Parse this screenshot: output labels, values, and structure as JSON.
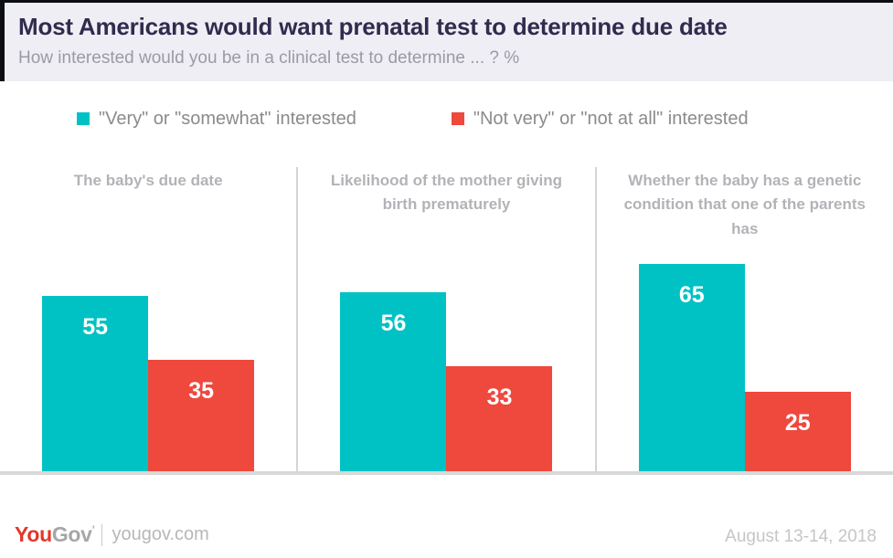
{
  "header": {
    "title": "Most Americans would want prenatal test to determine due date",
    "subtitle": "How interested would you be in a clinical test to determine ... ? %"
  },
  "legend": [
    {
      "label": "\"Very\" or \"somewhat\" interested",
      "color": "#00c2c4"
    },
    {
      "label": "\"Not very\" or \"not at all\" interested",
      "color": "#ef483d"
    }
  ],
  "chart_data": {
    "type": "bar",
    "unit": "%",
    "categories": [
      "The baby's due date",
      "Likelihood of the mother giving birth prematurely",
      "Whether the baby has a genetic condition that one of the parents has"
    ],
    "series": [
      {
        "name": "\"Very\" or \"somewhat\" interested",
        "color": "#00c2c4",
        "values": [
          55,
          56,
          65
        ]
      },
      {
        "name": "\"Not very\" or \"not at all\" interested",
        "color": "#ef483d",
        "values": [
          35,
          33,
          25
        ]
      }
    ],
    "ylim": [
      0,
      70
    ],
    "grid": false,
    "legend_position": "top",
    "value_labels": "inside-top",
    "baseline_shown": true
  },
  "footer": {
    "logo_you": "You",
    "logo_gov": "Gov",
    "logo_tick": "'",
    "site": "yougov.com",
    "date": "August 13-14, 2018"
  }
}
